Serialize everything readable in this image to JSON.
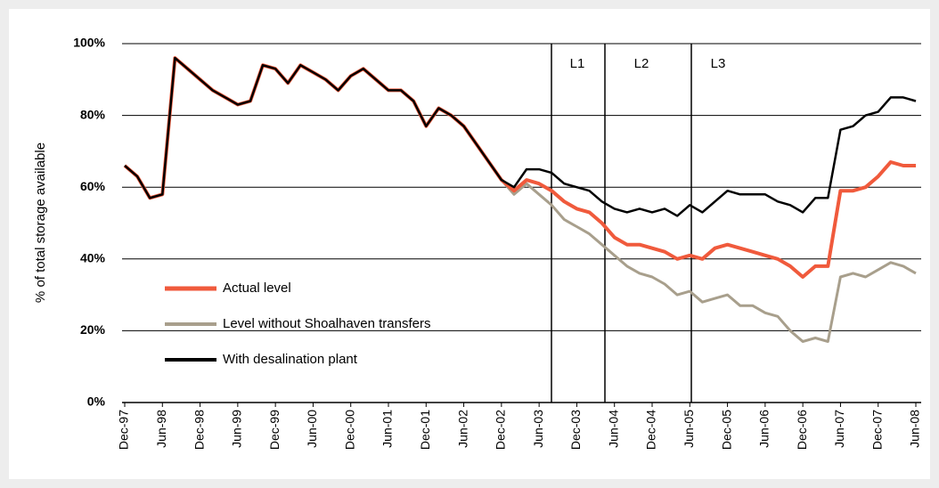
{
  "chart_data": {
    "type": "line",
    "y_axis_label": "% of total storage available",
    "categories": [
      "Dec-97",
      null,
      null,
      "Jun-98",
      null,
      null,
      "Dec-98",
      null,
      null,
      "Jun-99",
      null,
      null,
      "Dec-99",
      null,
      null,
      "Jun-00",
      null,
      null,
      "Dec-00",
      null,
      null,
      "Jun-01",
      null,
      null,
      "Dec-01",
      null,
      null,
      "Jun-02",
      null,
      null,
      "Dec-02",
      null,
      null,
      "Jun-03",
      null,
      null,
      "Dec-03",
      null,
      null,
      "Jun-04",
      null,
      null,
      "Dec-04",
      null,
      null,
      "Jun-05",
      null,
      null,
      "Dec-05",
      null,
      null,
      "Jun-06",
      null,
      null,
      "Dec-06",
      null,
      null,
      "Jun-07",
      null,
      null,
      "Dec-07",
      null,
      null,
      "Jun-08"
    ],
    "series": [
      {
        "name": "Level without Shoalhaven transfers",
        "color": "#a89f8c",
        "values": [
          66,
          63,
          57,
          58,
          96,
          93,
          90,
          87,
          85,
          83,
          84,
          94,
          93,
          89,
          94,
          92,
          90,
          87,
          91,
          93,
          90,
          87,
          87,
          84,
          77,
          82,
          80,
          77,
          72,
          67,
          62,
          58,
          61,
          58,
          55,
          51,
          49,
          47,
          44,
          41,
          38,
          36,
          35,
          33,
          30,
          31,
          28,
          29,
          30,
          27,
          27,
          25,
          24,
          20,
          17,
          18,
          17,
          35,
          36,
          35,
          37,
          39,
          38,
          36
        ]
      },
      {
        "name": "Actual level",
        "color": "#f05a3c",
        "values": [
          66,
          63,
          57,
          58,
          96,
          93,
          90,
          87,
          85,
          83,
          84,
          94,
          93,
          89,
          94,
          92,
          90,
          87,
          91,
          93,
          90,
          87,
          87,
          84,
          77,
          82,
          80,
          77,
          72,
          67,
          62,
          59,
          62,
          61,
          59,
          56,
          54,
          53,
          50,
          46,
          44,
          44,
          43,
          42,
          40,
          41,
          40,
          43,
          44,
          43,
          42,
          41,
          40,
          38,
          35,
          38,
          38,
          59,
          59,
          60,
          63,
          67,
          66,
          66
        ]
      },
      {
        "name": "With desalination plant",
        "color": "#000000",
        "values": [
          66,
          63,
          57,
          58,
          96,
          93,
          90,
          87,
          85,
          83,
          84,
          94,
          93,
          89,
          94,
          92,
          90,
          87,
          91,
          93,
          90,
          87,
          87,
          84,
          77,
          82,
          80,
          77,
          72,
          67,
          62,
          60,
          65,
          65,
          64,
          61,
          60,
          59,
          56,
          54,
          53,
          54,
          53,
          54,
          52,
          55,
          53,
          56,
          59,
          58,
          58,
          58,
          56,
          55,
          53,
          57,
          57,
          76,
          77,
          80,
          81,
          85,
          85,
          84
        ]
      }
    ],
    "annotations": [
      "L1",
      "L2",
      "L3"
    ],
    "ylim": [
      0,
      100
    ],
    "yticks": [
      {
        "value": 0,
        "label": "0%"
      },
      {
        "value": 20,
        "label": "20%"
      },
      {
        "value": 40,
        "label": "40%"
      },
      {
        "value": 60,
        "label": "60%"
      },
      {
        "value": 80,
        "label": "80%"
      },
      {
        "value": 100,
        "label": "100%"
      }
    ],
    "grid": true
  }
}
